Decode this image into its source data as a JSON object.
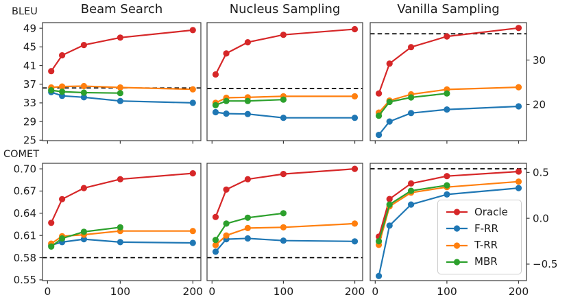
{
  "labels": {
    "bleu": "BLEU",
    "comet": "COMET"
  },
  "titles": [
    "Beam Search",
    "Nucleus Sampling",
    "Vanilla Sampling"
  ],
  "legend": {
    "items": [
      {
        "key": "oracle",
        "label": "Oracle"
      },
      {
        "key": "frr",
        "label": "F-RR"
      },
      {
        "key": "trr",
        "label": "T-RR"
      },
      {
        "key": "mbr",
        "label": "MBR"
      }
    ]
  },
  "colors": {
    "oracle": "#d62728",
    "frr": "#1f77b4",
    "trr": "#ff7f0e",
    "mbr": "#2ca02c",
    "baseline": "#000000",
    "spine": "#3b3b3b"
  },
  "chart_data": {
    "type": "line",
    "x_values": [
      5,
      20,
      50,
      100,
      200
    ],
    "xlim": [
      -7,
      211
    ],
    "x_ticks": [
      0,
      100,
      200
    ],
    "x_tick_labels": [
      "0",
      "100",
      "200"
    ],
    "series_order": [
      "oracle",
      "frr",
      "trr",
      "mbr"
    ],
    "subplots": [
      {
        "id": "bleu-beam-search",
        "row": 0,
        "col": 0,
        "metric": "BLEU",
        "title": "Beam Search",
        "ylim": [
          24.9,
          50.2
        ],
        "yticks": [
          49,
          45,
          41,
          37,
          33,
          29,
          25
        ],
        "ytick_labels": [
          "49",
          "45",
          "41",
          "37",
          "33",
          "29",
          "25"
        ],
        "ytick_side": "left",
        "show_ytick_labels": true,
        "show_xtick_labels": false,
        "baseline": 36.2,
        "series": {
          "oracle": [
            39.8,
            43.2,
            45.4,
            47.0,
            48.6
          ],
          "frr": [
            35.3,
            34.5,
            34.2,
            33.4,
            33.0
          ],
          "trr": [
            36.3,
            36.5,
            36.6,
            36.3,
            35.9
          ],
          "mbr": [
            35.7,
            35.4,
            35.2,
            35.1
          ]
        }
      },
      {
        "id": "bleu-nucleus-sampling",
        "row": 0,
        "col": 1,
        "metric": "BLEU",
        "title": "Nucleus Sampling",
        "ylim": [
          24.9,
          50.2
        ],
        "yticks": [],
        "ytick_labels": [],
        "ytick_side": "left",
        "show_ytick_labels": false,
        "show_xtick_labels": false,
        "baseline": 36.1,
        "series": {
          "oracle": [
            39.1,
            43.6,
            46.0,
            47.6,
            48.8
          ],
          "frr": [
            31.0,
            30.7,
            30.6,
            29.8,
            29.8
          ],
          "trr": [
            33.0,
            34.1,
            34.2,
            34.4,
            34.4
          ],
          "mbr": [
            32.5,
            33.4,
            33.4,
            33.7
          ]
        }
      },
      {
        "id": "bleu-vanilla-sampling",
        "row": 0,
        "col": 2,
        "metric": "BLEU",
        "title": "Vanilla Sampling",
        "ylim": [
          11.9,
          38.4
        ],
        "yticks": [
          30,
          20
        ],
        "ytick_labels": [
          "30",
          "20"
        ],
        "ytick_side": "right",
        "show_ytick_labels": true,
        "show_xtick_labels": false,
        "baseline": 35.9,
        "series": {
          "oracle": [
            22.5,
            29.2,
            32.9,
            35.3,
            37.2
          ],
          "frr": [
            13.2,
            16.2,
            18.1,
            18.9,
            19.6
          ],
          "trr": [
            18.2,
            20.9,
            22.3,
            23.4,
            23.9
          ],
          "mbr": [
            17.5,
            20.6,
            21.6,
            22.5
          ]
        }
      },
      {
        "id": "comet-beam-search",
        "row": 1,
        "col": 0,
        "metric": "COMET",
        "title": "Beam Search",
        "ylim": [
          0.549,
          0.7075
        ],
        "yticks": [
          0.7,
          0.67,
          0.64,
          0.61,
          0.58,
          0.55
        ],
        "ytick_labels": [
          "0.70",
          "0.67",
          "0.64",
          "0.61",
          "0.58",
          "0.55"
        ],
        "ytick_side": "left",
        "show_ytick_labels": true,
        "show_xtick_labels": true,
        "baseline": 0.58,
        "series": {
          "oracle": [
            0.627,
            0.659,
            0.674,
            0.686,
            0.694
          ],
          "frr": [
            0.597,
            0.601,
            0.605,
            0.601,
            0.6
          ],
          "trr": [
            0.599,
            0.609,
            0.611,
            0.616,
            0.616
          ],
          "mbr": [
            0.595,
            0.606,
            0.615,
            0.621
          ]
        }
      },
      {
        "id": "comet-nucleus-sampling",
        "row": 1,
        "col": 1,
        "metric": "COMET",
        "title": "Nucleus Sampling",
        "ylim": [
          0.549,
          0.7075
        ],
        "yticks": [],
        "ytick_labels": [],
        "ytick_side": "left",
        "show_ytick_labels": false,
        "show_xtick_labels": true,
        "baseline": 0.58,
        "series": {
          "oracle": [
            0.635,
            0.672,
            0.686,
            0.693,
            0.7
          ],
          "frr": [
            0.588,
            0.605,
            0.606,
            0.603,
            0.602
          ],
          "trr": [
            0.597,
            0.61,
            0.62,
            0.621,
            0.626
          ],
          "mbr": [
            0.604,
            0.626,
            0.634,
            0.64
          ]
        }
      },
      {
        "id": "comet-vanilla-sampling",
        "row": 1,
        "col": 2,
        "metric": "COMET",
        "title": "Vanilla Sampling",
        "ylim": [
          -0.68,
          0.6
        ],
        "yticks": [
          0.5,
          0.0,
          -0.5
        ],
        "ytick_labels": [
          "0.5",
          "0.0",
          "−0.5"
        ],
        "ytick_side": "right",
        "show_ytick_labels": true,
        "show_xtick_labels": true,
        "baseline": 0.54,
        "series": {
          "oracle": [
            -0.2,
            0.21,
            0.38,
            0.46,
            0.51
          ],
          "frr": [
            -0.63,
            -0.08,
            0.15,
            0.26,
            0.33
          ],
          "trr": [
            -0.29,
            0.13,
            0.28,
            0.34,
            0.4
          ],
          "mbr": [
            -0.25,
            0.15,
            0.3,
            0.36
          ]
        }
      }
    ]
  }
}
